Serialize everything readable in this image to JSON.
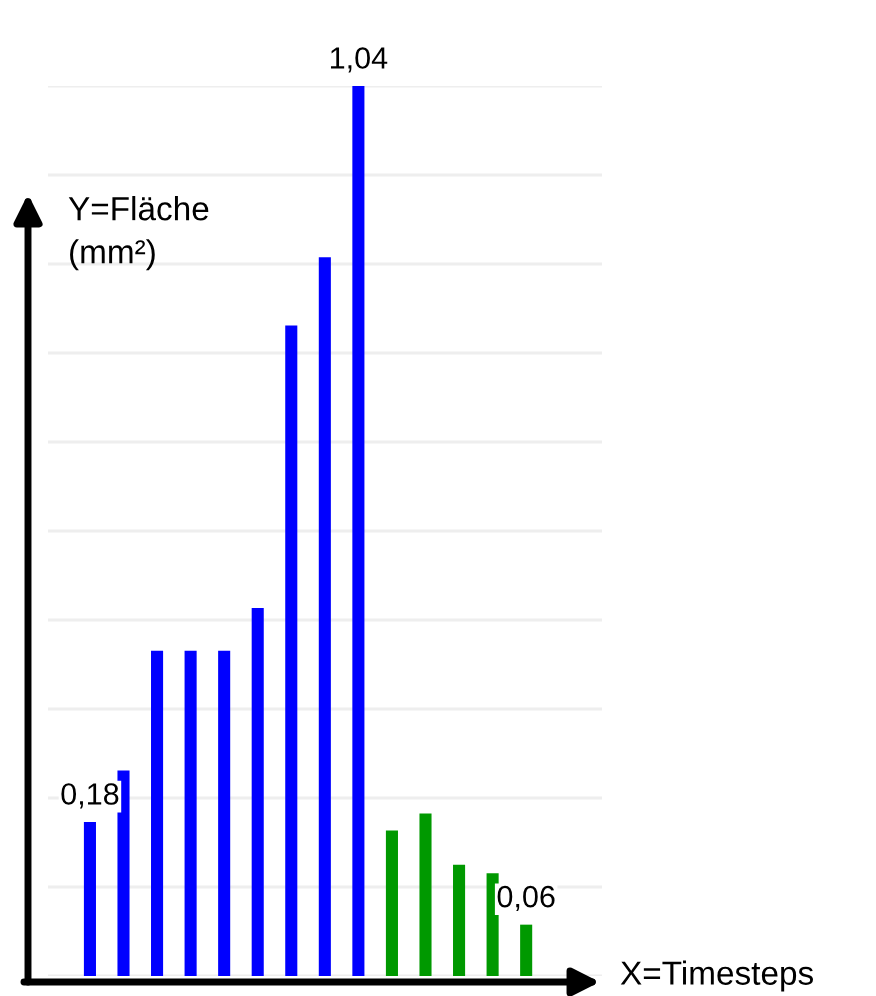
{
  "chart_data": {
    "type": "bar",
    "xlabel": "X=Timesteps",
    "ylabel": "Y=Fläche\n(mm²)",
    "categories": [
      null,
      null,
      null,
      null,
      null,
      null,
      null,
      null,
      null,
      null,
      null,
      null,
      null,
      null
    ],
    "values": [
      0.18,
      0.24,
      0.38,
      0.38,
      0.38,
      0.43,
      0.76,
      0.84,
      1.04,
      0.17,
      0.19,
      0.13,
      0.12,
      0.06
    ],
    "colors": [
      "#0000ff",
      "#0000ff",
      "#0000ff",
      "#0000ff",
      "#0000ff",
      "#0000ff",
      "#0000ff",
      "#0000ff",
      "#0000ff",
      "#009900",
      "#009900",
      "#009900",
      "#009900",
      "#009900"
    ],
    "value_labels": [
      "0,18",
      null,
      null,
      null,
      null,
      null,
      null,
      null,
      "1,04",
      null,
      null,
      null,
      null,
      "0,06"
    ],
    "ylim": [
      0,
      1.04
    ],
    "yticks": [
      {
        "value": 0,
        "label": null
      },
      {
        "value": 0.104,
        "label": null
      },
      {
        "value": 0.208,
        "label": null
      },
      {
        "value": 0.312,
        "label": null
      },
      {
        "value": 0.416,
        "label": null
      },
      {
        "value": 0.52,
        "label": null
      },
      {
        "value": 0.624,
        "label": null
      },
      {
        "value": 0.728,
        "label": null
      },
      {
        "value": 0.832,
        "label": null
      },
      {
        "value": 0.936,
        "label": null
      },
      {
        "value": 1.04,
        "label": null
      }
    ],
    "grid": "y"
  }
}
